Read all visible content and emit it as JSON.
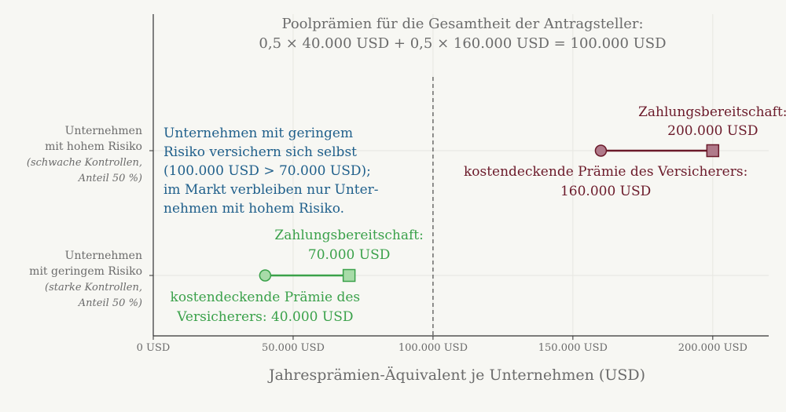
{
  "chart_data": {
    "type": "dumbbell",
    "title_lines": [
      "Poolprämien für die Gesamtheit der Antragsteller:",
      "0,5 × 40.000 USD + 0,5 × 160.000 USD = 100.000 USD"
    ],
    "xlabel": "Jahresprämien-Äquivalent je Unternehmen (USD)",
    "xlim": [
      0,
      220000
    ],
    "xticks": [
      0,
      50000,
      100000,
      150000,
      200000
    ],
    "xtick_labels": [
      "0 USD",
      "50.000 USD",
      "100.000 USD",
      "150.000 USD",
      "200.000 USD"
    ],
    "grid": true,
    "pool_premium_line": 100000,
    "categories": [
      {
        "key": "high",
        "label_lines": [
          "Unternehmen",
          "mit hohem Risiko"
        ],
        "sub_lines": [
          "(schwache Kontrollen,",
          "Anteil 50 %)"
        ],
        "cost_premium": 160000,
        "willingness_to_pay": 200000,
        "color": "#6b1a2a",
        "fill": "#b07a8a"
      },
      {
        "key": "low",
        "label_lines": [
          "Unternehmen",
          "mit geringem Risiko"
        ],
        "sub_lines": [
          "(starke Kontrollen,",
          "Anteil 50 %)"
        ],
        "cost_premium": 40000,
        "willingness_to_pay": 70000,
        "color": "#3aa14a",
        "fill": "#a8dba8"
      }
    ],
    "annotations": {
      "high_wtp": [
        "Zahlungsbereitschaft:",
        "200.000 USD"
      ],
      "high_cost": [
        "kostendeckende Prämie des Versicherers:",
        "160.000 USD"
      ],
      "low_wtp": [
        "Zahlungsbereitschaft:",
        "70.000 USD"
      ],
      "low_cost": [
        "kostendeckende Prämie des",
        "Versicherers: 40.000 USD"
      ],
      "selection": [
        "Unternehmen mit geringem",
        "Risiko versichern sich selbst",
        "(100.000 USD > 70.000 USD);",
        "im Markt verbleiben nur Unter-",
        "nehmen mit hohem Risiko."
      ],
      "selection_color": "#1f5f8b"
    }
  }
}
